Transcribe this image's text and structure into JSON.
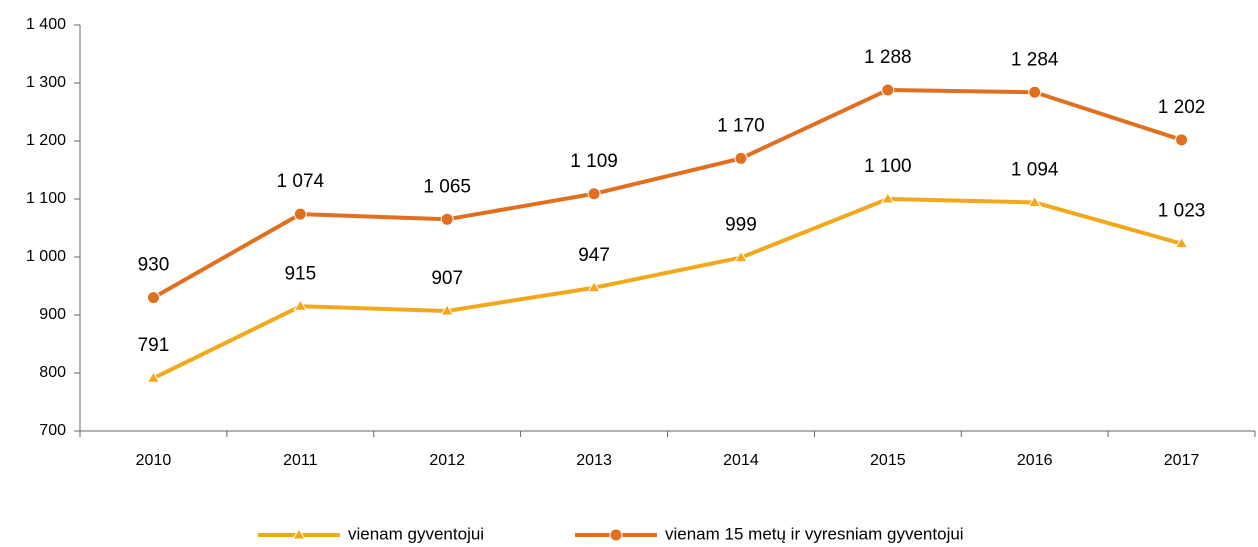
{
  "chart_data": {
    "type": "line",
    "categories": [
      "2010",
      "2011",
      "2012",
      "2013",
      "2014",
      "2015",
      "2016",
      "2017"
    ],
    "series": [
      {
        "name": "vienam gyventojui",
        "color": "#f2a81d",
        "marker": "triangle",
        "values": [
          791,
          915,
          907,
          947,
          999,
          1100,
          1094,
          1023
        ],
        "value_labels": [
          "791",
          "915",
          "907",
          "947",
          "999",
          "1 100",
          "1 094",
          "1 023"
        ]
      },
      {
        "name": "vienam 15 metų ir vyresniam gyventojui",
        "color": "#e0701f",
        "marker": "circle",
        "values": [
          930,
          1074,
          1065,
          1109,
          1170,
          1288,
          1284,
          1202
        ],
        "value_labels": [
          "930",
          "1 074",
          "1 065",
          "1 109",
          "1 170",
          "1 288",
          "1 284",
          "1 202"
        ]
      }
    ],
    "ylim": [
      700,
      1400
    ],
    "yticks": [
      700,
      800,
      900,
      {
        "value": 1000,
        "label": "1 000"
      },
      {
        "value": 1100,
        "label": "1 100"
      },
      {
        "value": 1200,
        "label": "1 200"
      },
      {
        "value": 1300,
        "label": "1 300"
      },
      {
        "value": 1400,
        "label": "1 400"
      }
    ],
    "legend": "bottom"
  }
}
